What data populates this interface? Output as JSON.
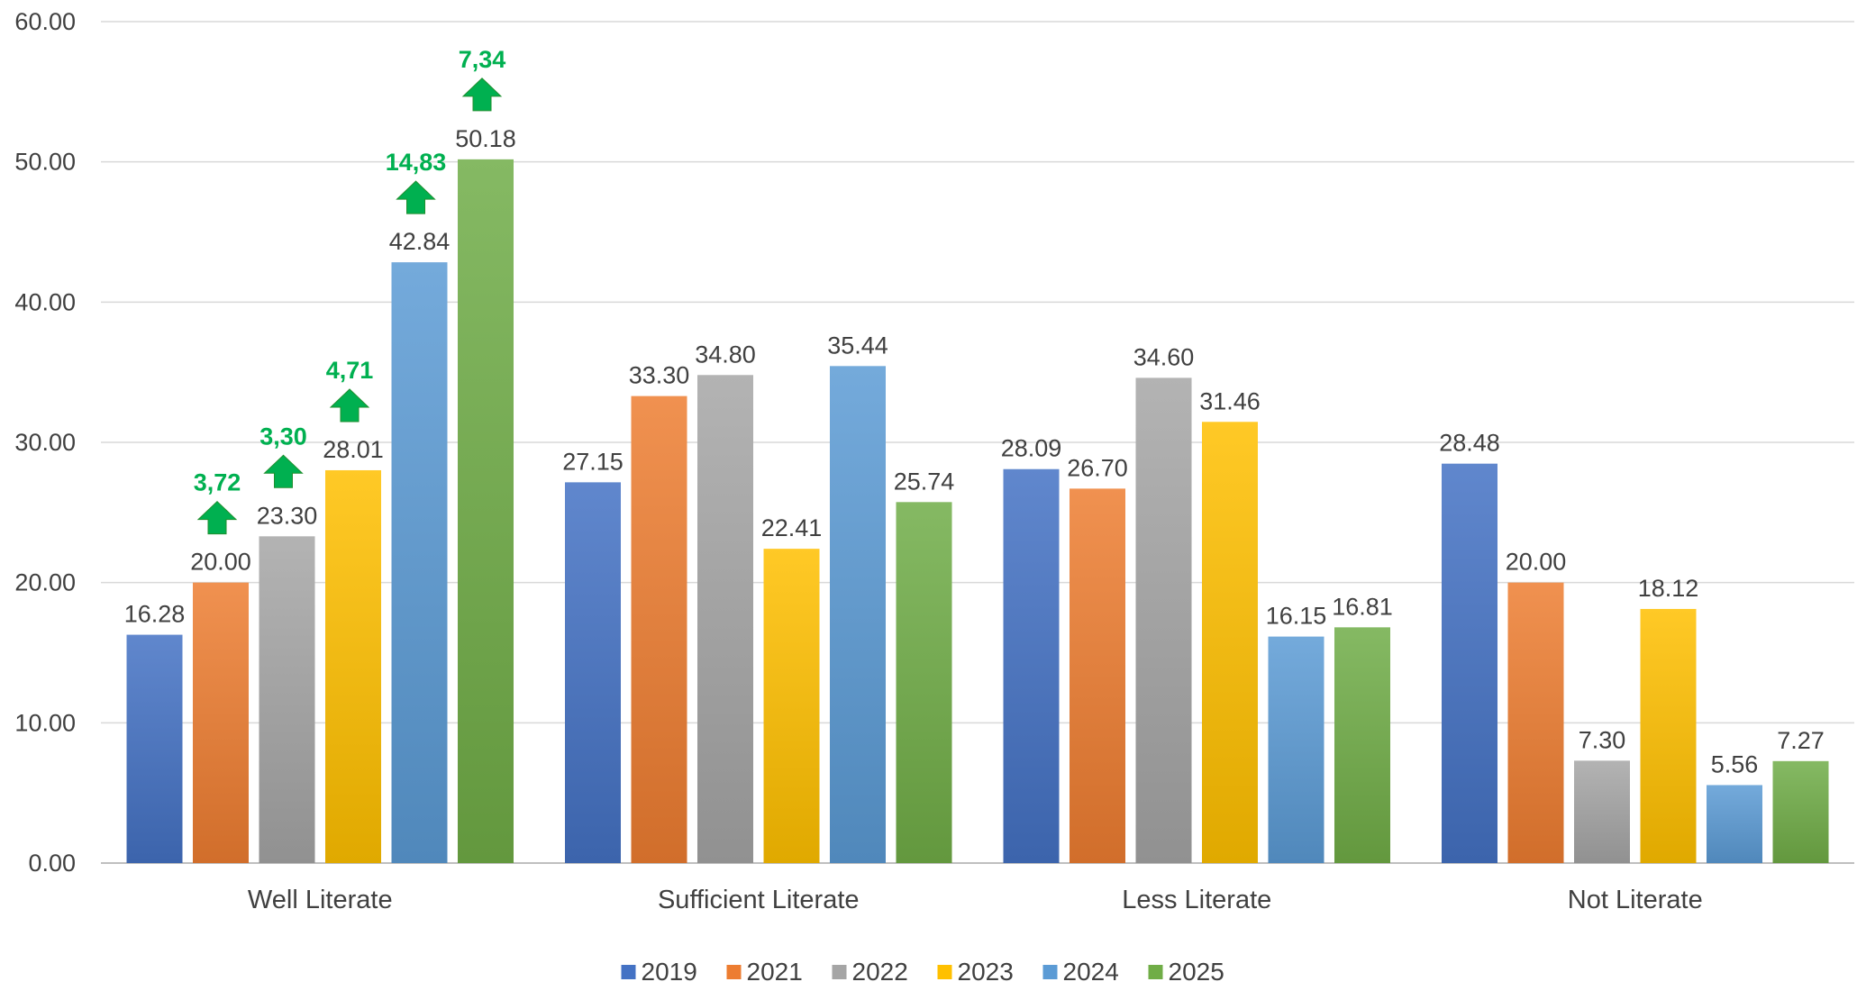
{
  "chart_data": {
    "type": "bar",
    "categories": [
      "Well Literate",
      "Sufficient Literate",
      "Less Literate",
      "Not Literate"
    ],
    "series": [
      {
        "name": "2019",
        "color": "#4472c4",
        "values": [
          16.28,
          27.15,
          28.09,
          28.48
        ],
        "labels": [
          "16.28",
          "27.15",
          "28.09",
          "28.48"
        ]
      },
      {
        "name": "2021",
        "color": "#ed7d31",
        "values": [
          20.0,
          33.3,
          26.7,
          20.0
        ],
        "labels": [
          "20.00",
          "33.30",
          "26.70",
          "20.00"
        ]
      },
      {
        "name": "2022",
        "color": "#a5a5a5",
        "values": [
          23.3,
          34.8,
          34.6,
          7.3
        ],
        "labels": [
          "23.30",
          "34.80",
          "34.60",
          "7.30"
        ]
      },
      {
        "name": "2023",
        "color": "#ffc000",
        "values": [
          28.01,
          22.41,
          31.46,
          18.12
        ],
        "labels": [
          "28.01",
          "22.41",
          "31.46",
          "18.12"
        ]
      },
      {
        "name": "2024",
        "color": "#5b9bd5",
        "values": [
          42.84,
          35.44,
          16.15,
          5.56
        ],
        "labels": [
          "42.84",
          "35.44",
          "16.15",
          "5.56"
        ]
      },
      {
        "name": "2025",
        "color": "#70ad47",
        "values": [
          50.18,
          25.74,
          16.81,
          7.27
        ],
        "labels": [
          "50.18",
          "25.74",
          "16.81",
          "7.27"
        ]
      }
    ],
    "y_ticks": [
      "0.00",
      "10.00",
      "20.00",
      "30.00",
      "40.00",
      "50.00",
      "60.00"
    ],
    "ylim": [
      0,
      60
    ],
    "grid": true,
    "legend_position": "bottom",
    "title": "",
    "xlabel": "",
    "ylabel": "",
    "annotations": [
      {
        "text": "3,72",
        "category": "Well Literate",
        "series": "2021",
        "color": "#00b050"
      },
      {
        "text": "3,30",
        "category": "Well Literate",
        "series": "2022",
        "color": "#00b050"
      },
      {
        "text": "4,71",
        "category": "Well Literate",
        "series": "2023",
        "color": "#00b050"
      },
      {
        "text": "14,83",
        "category": "Well Literate",
        "series": "2024",
        "color": "#00b050"
      },
      {
        "text": "7,34",
        "category": "Well Literate",
        "series": "2025",
        "color": "#00b050"
      }
    ]
  }
}
